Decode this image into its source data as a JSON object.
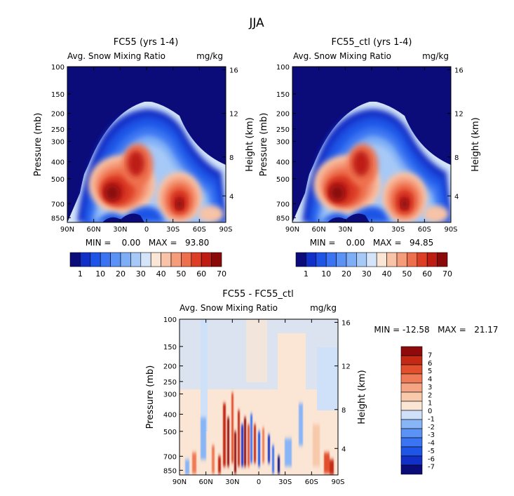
{
  "figure_title": "JJA",
  "colors": {
    "ctl_scale": [
      "#0b0b7a",
      "#1230c8",
      "#1f55e6",
      "#3a74f2",
      "#5a92f5",
      "#7eaef6",
      "#a6c9f7",
      "#d4e5f9",
      "#fbe6d6",
      "#f8c3a6",
      "#f59c7b",
      "#ee6f4e",
      "#dd3e26",
      "#be1d14",
      "#8a0a0a"
    ],
    "diff_scale": [
      "#0b0b7a",
      "#1230c8",
      "#1f55e6",
      "#3a74f2",
      "#5a92f5",
      "#88b5f6",
      "#cfe1f8",
      "#fbe5d4",
      "#f8c9ab",
      "#f5a584",
      "#ef7a57",
      "#e24f2d",
      "#c42914",
      "#8f0b0b"
    ]
  },
  "chart_data": [
    {
      "type": "heatmap",
      "title": "FC55 (yrs 1-4)",
      "subtitle_left": "Avg. Snow Mixing Ratio",
      "subtitle_right": "mg/kg",
      "xlabel": "",
      "ylabel": "Pressure (mb)",
      "y2label": "Height (km)",
      "x_ticks": [
        "90N",
        "60N",
        "30N",
        "0",
        "30S",
        "60S",
        "90S"
      ],
      "y_ticks": [
        "100",
        "150",
        "200",
        "250",
        "300",
        "400",
        "500",
        "700",
        "850"
      ],
      "y2_ticks": [
        "16",
        "12",
        "8",
        "4"
      ],
      "stats": "MIN =    0.00   MAX =   93.80",
      "min": 0.0,
      "max": 93.8,
      "colorbar_labels": [
        "1",
        "10",
        "20",
        "30",
        "40",
        "50",
        "60",
        "70"
      ]
    },
    {
      "type": "heatmap",
      "title": "FC55_ctl (yrs 1-4)",
      "subtitle_left": "Avg. Snow Mixing Ratio",
      "subtitle_right": "mg/kg",
      "xlabel": "",
      "ylabel": "Pressure (mb)",
      "y2label": "Height (km)",
      "x_ticks": [
        "90N",
        "60N",
        "30N",
        "0",
        "30S",
        "60S",
        "90S"
      ],
      "y_ticks": [
        "100",
        "150",
        "200",
        "250",
        "300",
        "400",
        "500",
        "700",
        "850"
      ],
      "y2_ticks": [
        "16",
        "12",
        "8",
        "4"
      ],
      "stats": "MIN =    0.00   MAX =   94.85",
      "min": 0.0,
      "max": 94.85,
      "colorbar_labels": [
        "1",
        "10",
        "20",
        "30",
        "40",
        "50",
        "60",
        "70"
      ]
    },
    {
      "type": "heatmap",
      "title": "FC55 - FC55_ctl",
      "subtitle_left": "Avg. Snow Mixing Ratio",
      "subtitle_right": "mg/kg",
      "xlabel": "",
      "ylabel": "Pressure (mb)",
      "y2label": "Height (km)",
      "x_ticks": [
        "90N",
        "60N",
        "30N",
        "0",
        "30S",
        "60S",
        "90S"
      ],
      "y_ticks": [
        "100",
        "150",
        "200",
        "250",
        "300",
        "400",
        "500",
        "700",
        "850"
      ],
      "y2_ticks": [
        "16",
        "12",
        "8",
        "4"
      ],
      "stats": "MIN = -12.58   MAX =   21.17",
      "min": -12.58,
      "max": 21.17,
      "colorbar_labels": [
        "7",
        "6",
        "5",
        "4",
        "3",
        "2",
        "1",
        "0",
        "-1",
        "-2",
        "-3",
        "-4",
        "-5",
        "-6",
        "-7"
      ]
    }
  ]
}
